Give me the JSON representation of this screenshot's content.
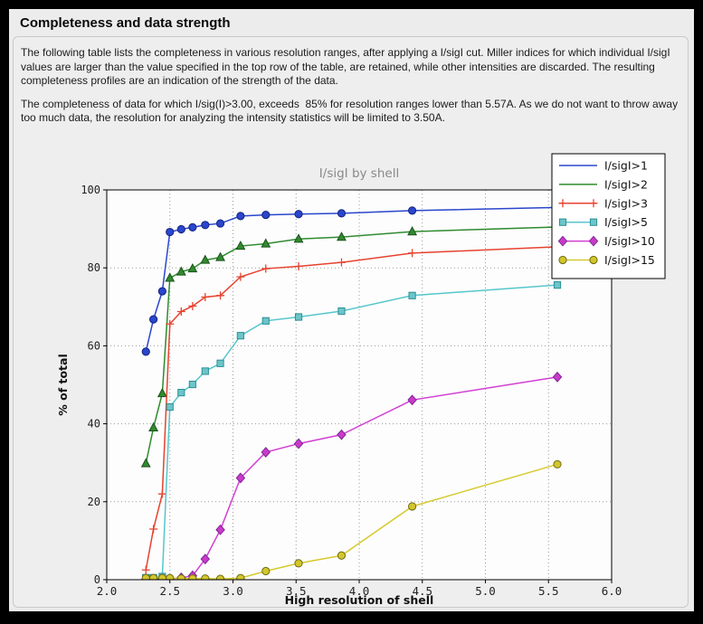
{
  "window": {
    "title": "Completeness and data strength"
  },
  "panel": {
    "paragraph1": "The following table lists the completeness in various resolution ranges, after applying a I/sigI cut. Miller indices for which individual I/sigI values are larger than the value specified in the top row of the table, are retained, while other intensities are discarded. The resulting completeness profiles are an indication of the strength of the data.",
    "paragraph2": "The completeness of data for which I/sig(I)>3.00, exceeds  85% for resolution ranges lower than 5.57A. As we do not want to throw away too much data, the resolution for analyzing the intensity statistics will be limited to 3.50A."
  },
  "colors": {
    "window_background": "#ececec",
    "panel_border": "#c9c9c9",
    "plot_frame": "#000000",
    "chart_title_gray": "#8a8a8a"
  },
  "chart_data": {
    "type": "line",
    "title": "I/sigI by shell",
    "xlabel": "High resolution of shell",
    "ylabel": "% of total",
    "xlim": [
      2.0,
      6.0
    ],
    "ylim": [
      0,
      100
    ],
    "xticks": [
      2.0,
      2.5,
      3.0,
      3.5,
      4.0,
      4.5,
      5.0,
      5.5,
      6.0
    ],
    "yticks": [
      0,
      20,
      40,
      60,
      80,
      100
    ],
    "grid": true,
    "grid_color": "#9a9a9a",
    "plot_bg": "#fdfdfd",
    "legend_position": "upper right",
    "x": [
      2.31,
      2.37,
      2.44,
      2.5,
      2.59,
      2.68,
      2.78,
      2.9,
      3.06,
      3.26,
      3.52,
      3.86,
      4.42,
      5.57
    ],
    "series": [
      {
        "name": "I/sigI>1",
        "color": "#2a46cc",
        "edge": "#14227e",
        "marker": "circle",
        "legend_marker": false,
        "values": [
          58.5,
          66.8,
          74.0,
          89.2,
          89.9,
          90.4,
          91.0,
          91.4,
          93.3,
          93.6,
          93.8,
          94.0,
          94.7,
          95.5
        ]
      },
      {
        "name": "I/sigI>2",
        "color": "#2f8b2f",
        "edge": "#1c511c",
        "marker": "triangle",
        "legend_marker": false,
        "values": [
          29.8,
          39.0,
          47.8,
          77.4,
          79.0,
          79.8,
          82.0,
          82.7,
          85.6,
          86.2,
          87.4,
          87.9,
          89.3,
          90.5
        ]
      },
      {
        "name": "I/sigI>3",
        "color": "#e6432f",
        "edge": "#9e2417",
        "marker": "plus",
        "legend_marker": true,
        "values": [
          2.5,
          13.0,
          22.0,
          65.6,
          68.8,
          70.2,
          72.5,
          72.9,
          77.7,
          79.8,
          80.4,
          81.4,
          83.8,
          85.4
        ]
      },
      {
        "name": "I/sigI>5",
        "color": "#57c6cc",
        "edge": "#2c8f96",
        "fill": "#6cc5c9",
        "marker": "square",
        "legend_marker": true,
        "values": [
          0.5,
          0.5,
          0.8,
          44.3,
          48.0,
          50.1,
          53.5,
          55.5,
          62.6,
          66.4,
          67.4,
          68.9,
          72.9,
          75.6
        ]
      },
      {
        "name": "I/sigI>10",
        "color": "#d23fd2",
        "edge": "#7e2896",
        "fill": "#c93ac9",
        "marker": "diamond",
        "legend_marker": true,
        "values": [
          0.1,
          0.1,
          0.1,
          0.2,
          0.5,
          1.0,
          5.3,
          12.8,
          26.1,
          32.7,
          34.9,
          37.2,
          46.1,
          52.0
        ]
      },
      {
        "name": "I/sigI>15",
        "color": "#d6ca2f",
        "edge": "#6f6a15",
        "fill": "#d2c62c",
        "marker": "circle",
        "legend_marker": true,
        "values": [
          0.4,
          0.4,
          0.4,
          0.4,
          0.3,
          0.3,
          0.3,
          0.2,
          0.4,
          2.2,
          4.2,
          6.2,
          18.8,
          29.6
        ]
      }
    ]
  }
}
